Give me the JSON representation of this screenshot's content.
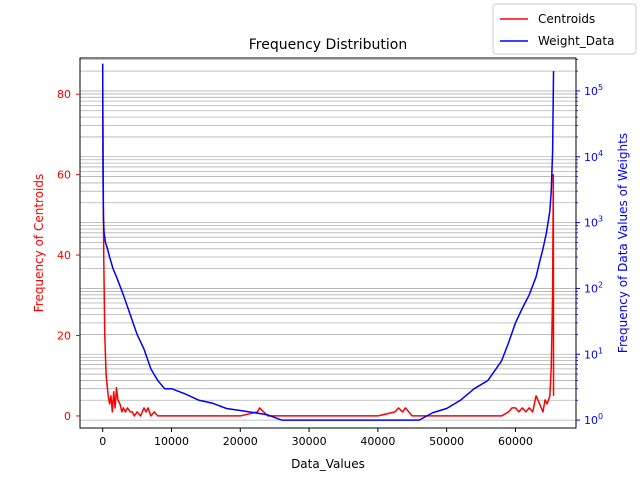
{
  "chart_data": {
    "type": "line",
    "title": "Frequency Distribution",
    "xlabel": "Data_Values",
    "ylabel_left": "Frequency of Centroids",
    "ylabel_right": "Frequency of Data Values of Weights",
    "xlim": [
      -3300,
      68800
    ],
    "ylim_left": [
      -3,
      89
    ],
    "ylim_right_log10": [
      -0.12,
      5.5
    ],
    "x_ticks": [
      {
        "value": 0,
        "label": "0"
      },
      {
        "value": 10000,
        "label": "10000"
      },
      {
        "value": 20000,
        "label": "20000"
      },
      {
        "value": 30000,
        "label": "30000"
      },
      {
        "value": 40000,
        "label": "40000"
      },
      {
        "value": 50000,
        "label": "50000"
      },
      {
        "value": 60000,
        "label": "60000"
      }
    ],
    "y_left_ticks": [
      {
        "value": 0,
        "label": "0"
      },
      {
        "value": 20,
        "label": "20"
      },
      {
        "value": 40,
        "label": "40"
      },
      {
        "value": 60,
        "label": "60"
      },
      {
        "value": 80,
        "label": "80"
      }
    ],
    "y_right_ticks": [
      {
        "base": "10",
        "exp": "0",
        "value": 1
      },
      {
        "base": "10",
        "exp": "1",
        "value": 10
      },
      {
        "base": "10",
        "exp": "2",
        "value": 100
      },
      {
        "base": "10",
        "exp": "3",
        "value": 1000
      },
      {
        "base": "10",
        "exp": "4",
        "value": 10000
      },
      {
        "base": "10",
        "exp": "5",
        "value": 100000
      }
    ],
    "grid": "horizontal-right-axis-log",
    "legend_position": "top-right",
    "series": [
      {
        "name": "Centroids",
        "axis": "left",
        "color": "#ff0000",
        "x": [
          0,
          150,
          300,
          500,
          800,
          1000,
          1200,
          1400,
          1600,
          1800,
          2000,
          2200,
          2500,
          2800,
          3000,
          3300,
          3600,
          4000,
          4300,
          4600,
          5000,
          5500,
          6000,
          6300,
          6600,
          7000,
          7500,
          8000,
          10000,
          15000,
          20000,
          22500,
          22800,
          24000,
          30000,
          40000,
          42500,
          43000,
          43600,
          44000,
          45000,
          50000,
          55000,
          58000,
          59000,
          59500,
          60000,
          60500,
          61000,
          61500,
          62000,
          62500,
          63000,
          63500,
          64000,
          64300,
          64600,
          65000,
          65200,
          65400,
          65500,
          65535
        ],
        "values": [
          80,
          40,
          20,
          10,
          5,
          3,
          5,
          1,
          6,
          2,
          7,
          4,
          3,
          1,
          2,
          1,
          2,
          1,
          1,
          0,
          1,
          0,
          2,
          1,
          2,
          0,
          1,
          0,
          0,
          0,
          0,
          1,
          2,
          0,
          0,
          0,
          1,
          2,
          1,
          2,
          0,
          0,
          0,
          0,
          1,
          2,
          2,
          1,
          2,
          1,
          2,
          1,
          5,
          3,
          1,
          4,
          3,
          5,
          12,
          30,
          60,
          5
        ]
      },
      {
        "name": "Weight_Data",
        "axis": "right",
        "color": "#0000ff",
        "x": [
          0,
          50,
          100,
          200,
          400,
          700,
          1000,
          1500,
          2000,
          3000,
          4000,
          5000,
          6000,
          7000,
          8000,
          9000,
          10000,
          12000,
          14000,
          16000,
          18000,
          20000,
          22000,
          24000,
          26000,
          28000,
          30000,
          32000,
          34000,
          36000,
          38000,
          40000,
          42000,
          44000,
          46000,
          48000,
          50000,
          52000,
          54000,
          56000,
          58000,
          59000,
          60000,
          61000,
          62000,
          63000,
          63500,
          64000,
          64500,
          65000,
          65200,
          65400,
          65535
        ],
        "values": [
          260000,
          4000,
          1200,
          700,
          500,
          400,
          300,
          200,
          150,
          80,
          40,
          20,
          12,
          6,
          4,
          3,
          3,
          2.5,
          2,
          1.8,
          1.5,
          1.4,
          1.3,
          1.2,
          1,
          1,
          1,
          1,
          1,
          1,
          1,
          1,
          1,
          1,
          1,
          1.3,
          1.5,
          2,
          3,
          4,
          8,
          15,
          30,
          50,
          80,
          150,
          250,
          400,
          700,
          1500,
          3000,
          12000,
          200000
        ]
      }
    ]
  }
}
